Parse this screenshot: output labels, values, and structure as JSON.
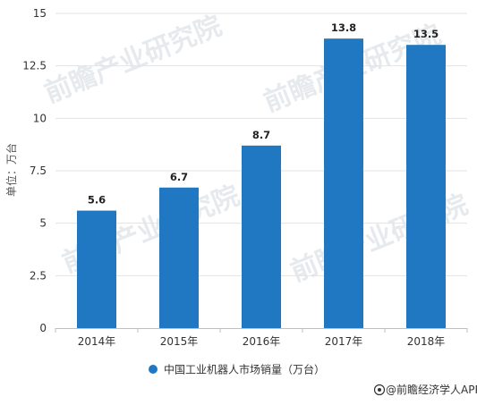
{
  "chart_data": {
    "type": "bar",
    "categories": [
      "2014年",
      "2015年",
      "2016年",
      "2017年",
      "2018年"
    ],
    "series": [
      {
        "name": "中国工业机器人市场销量（万台）",
        "values": [
          5.6,
          6.7,
          8.7,
          13.8,
          13.5
        ]
      }
    ],
    "data_labels": [
      "5.6",
      "6.7",
      "8.7",
      "13.8",
      "13.5"
    ],
    "title": "",
    "xlabel": "",
    "ylabel": "单位：万台",
    "ylim": [
      0,
      15
    ],
    "yticks": [
      0,
      2.5,
      5,
      7.5,
      10,
      12.5,
      15
    ],
    "ytick_labels": [
      "0",
      "2.5",
      "5",
      "7.5",
      "10",
      "12.5",
      "15"
    ],
    "grid": true,
    "legend_position": "bottom-center",
    "bar_color": "#1f78c1"
  },
  "watermark": {
    "text": "前瞻产业研究院"
  },
  "source": {
    "icon": "copyright-icon",
    "text": "@前瞻经济学人APP"
  }
}
